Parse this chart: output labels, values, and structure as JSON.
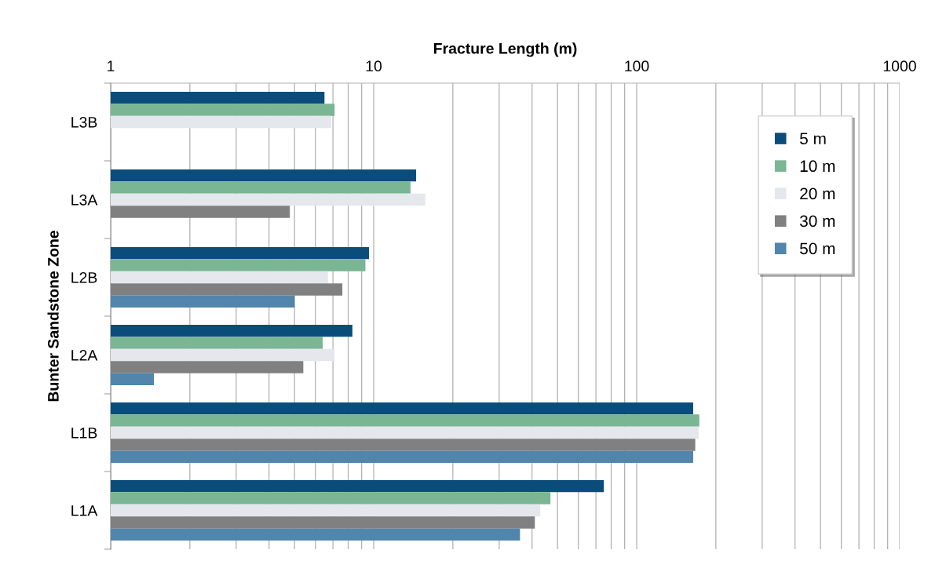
{
  "chart_data": {
    "type": "bar",
    "orientation": "horizontal",
    "xlabel": "Fracture Length (m)",
    "ylabel": "Bunter Sandstone Zone",
    "categories": [
      "L3B",
      "L3A",
      "L2B",
      "L2A",
      "L1B",
      "L1A"
    ],
    "series": [
      {
        "name": "5 m",
        "color": "#0a4d7a",
        "values": [
          6.5,
          14.5,
          9.6,
          8.3,
          164,
          75
        ]
      },
      {
        "name": "10 m",
        "color": "#7ab594",
        "values": [
          7.1,
          13.8,
          9.3,
          6.4,
          173,
          47
        ]
      },
      {
        "name": "20 m",
        "color": "#e4e8ed",
        "values": [
          6.9,
          15.7,
          6.7,
          7.1,
          172,
          43
        ]
      },
      {
        "name": "30 m",
        "color": "#808080",
        "values": [
          null,
          4.8,
          7.6,
          5.4,
          167,
          41
        ]
      },
      {
        "name": "50 m",
        "color": "#5185ab",
        "values": [
          null,
          null,
          5.0,
          1.46,
          164,
          36
        ]
      }
    ],
    "log": "x",
    "xlim": [
      1,
      1000
    ],
    "xticks": [
      1,
      10,
      100,
      1000
    ],
    "grid": "x",
    "legend": "right"
  }
}
